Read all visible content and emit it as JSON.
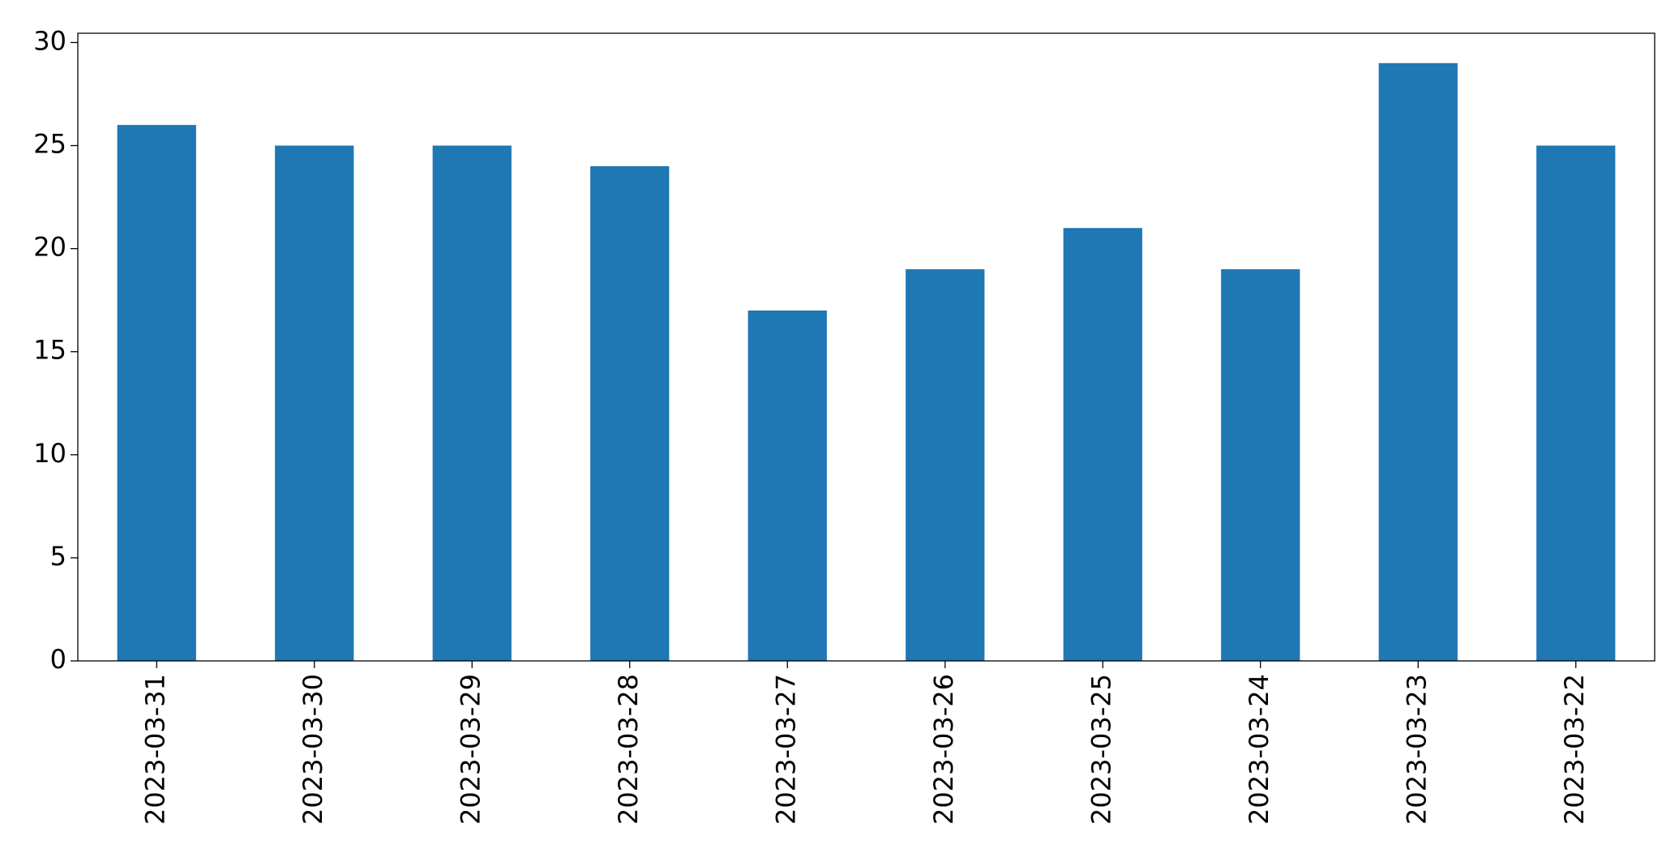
{
  "chart_data": {
    "type": "bar",
    "categories": [
      "2023-03-31",
      "2023-03-30",
      "2023-03-29",
      "2023-03-28",
      "2023-03-27",
      "2023-03-26",
      "2023-03-25",
      "2023-03-24",
      "2023-03-23",
      "2023-03-22"
    ],
    "values": [
      26,
      25,
      25,
      24,
      17,
      19,
      21,
      19,
      29,
      25
    ],
    "color": "#1f77b4",
    "ylim": [
      0,
      30.45
    ],
    "yticks": [
      0,
      5,
      10,
      15,
      20,
      25,
      30
    ],
    "grid": false
  }
}
